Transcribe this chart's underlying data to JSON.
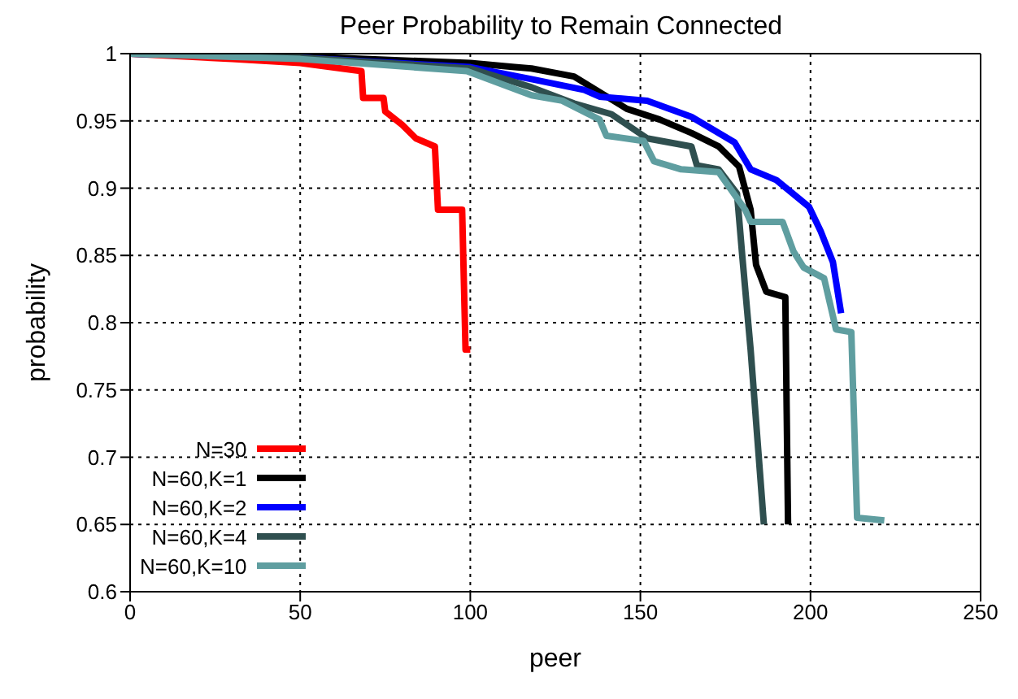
{
  "chart_data": {
    "type": "line",
    "title": "Peer Probability to Remain Connected",
    "xlabel": "peer",
    "ylabel": "probability",
    "xlim": [
      0,
      250
    ],
    "ylim": [
      0.6,
      1
    ],
    "xticks": [
      0,
      50,
      100,
      150,
      200,
      250
    ],
    "yticks": [
      0.6,
      0.65,
      0.7,
      0.75,
      0.8,
      0.85,
      0.9,
      0.95,
      1
    ],
    "grid": true,
    "legend": "bottom left",
    "marker": "none",
    "line_style": "solid",
    "series": [
      {
        "name": "N=30",
        "color": "#ff0000",
        "x": [
          0,
          30,
          50,
          68,
          68.5,
          74.5,
          75,
          80,
          84,
          89.6,
          90.5,
          97.6,
          98.6,
          100
        ],
        "values": [
          1,
          0.996,
          0.993,
          0.987,
          0.967,
          0.967,
          0.957,
          0.947,
          0.937,
          0.931,
          0.884,
          0.884,
          0.78,
          0.78
        ]
      },
      {
        "name": "N=60,K=1",
        "color": "#000000",
        "x": [
          0,
          50,
          100,
          113,
          118,
          130.5,
          146,
          155.7,
          165,
          173,
          179,
          182.4,
          184,
          187,
          192.6,
          193.4
        ],
        "values": [
          1,
          0.998,
          0.993,
          0.99,
          0.989,
          0.983,
          0.959,
          0.951,
          0.941,
          0.931,
          0.916,
          0.884,
          0.843,
          0.823,
          0.819,
          0.65
        ]
      },
      {
        "name": "N=60,K=2",
        "color": "#0000ff",
        "x": [
          0,
          50,
          100,
          118,
          133.5,
          138,
          152,
          165,
          177.7,
          182.4,
          190,
          199.6,
          203,
          206.6,
          209
        ],
        "values": [
          1,
          0.997,
          0.99,
          0.981,
          0.973,
          0.968,
          0.965,
          0.953,
          0.934,
          0.914,
          0.906,
          0.886,
          0.868,
          0.845,
          0.807
        ]
      },
      {
        "name": "N=60,K=4",
        "color": "#2f4f4f",
        "x": [
          0,
          50,
          100,
          118,
          130.5,
          141.5,
          152,
          165,
          166.6,
          173,
          178.4,
          180,
          182.4,
          186.3
        ],
        "values": [
          1,
          0.997,
          0.989,
          0.975,
          0.963,
          0.955,
          0.937,
          0.931,
          0.917,
          0.914,
          0.896,
          0.848,
          0.78,
          0.65
        ]
      },
      {
        "name": "N=60,K=10",
        "color": "#5f9ea0",
        "x": [
          0,
          50,
          99,
          118,
          127,
          138,
          140,
          151,
          154,
          162,
          173,
          180.8,
          182.4,
          191.8,
          195,
          198,
          204,
          207.5,
          212,
          213.7,
          221.7
        ],
        "values": [
          1,
          0.996,
          0.987,
          0.969,
          0.965,
          0.951,
          0.939,
          0.935,
          0.92,
          0.914,
          0.912,
          0.884,
          0.875,
          0.875,
          0.853,
          0.841,
          0.833,
          0.795,
          0.793,
          0.655,
          0.653
        ]
      }
    ]
  }
}
